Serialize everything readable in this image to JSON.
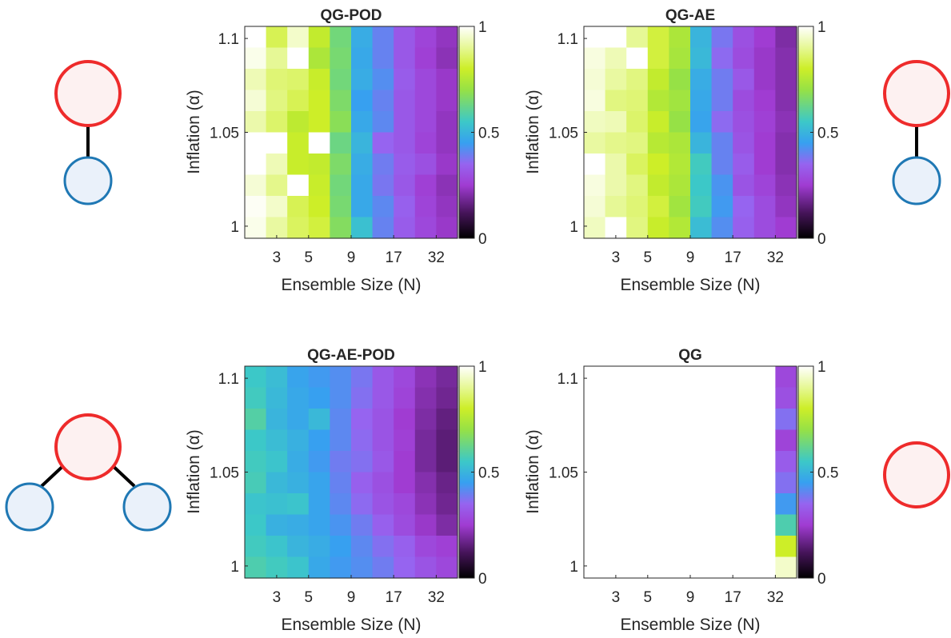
{
  "chart_data": [
    {
      "type": "heatmap",
      "title": "QG-POD",
      "xlabel": "Ensemble Size (N)",
      "ylabel": "Inflation (α)",
      "x_ticks": [
        "3",
        "5",
        "9",
        "17",
        "32"
      ],
      "y_ticks": [
        "1",
        "1.05",
        "1.1"
      ],
      "colorbar_ticks": [
        "0",
        "0.5",
        "1"
      ],
      "clim": [
        0,
        1
      ],
      "colormap": "white-green-cyan-blue-purple-black",
      "rows_from_top": [
        [
          1.0,
          0.84,
          0.95,
          0.78,
          0.64,
          0.48,
          0.4,
          0.32,
          0.27,
          0.23
        ],
        [
          0.98,
          0.9,
          1.0,
          0.74,
          0.65,
          0.47,
          0.4,
          0.32,
          0.26,
          0.22
        ],
        [
          0.93,
          0.87,
          0.86,
          0.79,
          0.64,
          0.48,
          0.42,
          0.33,
          0.28,
          0.24
        ],
        [
          0.96,
          0.88,
          0.84,
          0.8,
          0.66,
          0.45,
          0.4,
          0.32,
          0.28,
          0.24
        ],
        [
          0.92,
          0.86,
          0.77,
          0.8,
          0.68,
          0.47,
          0.41,
          0.32,
          0.28,
          0.23
        ],
        [
          1.0,
          1.0,
          0.79,
          1.0,
          0.63,
          0.5,
          0.35,
          0.32,
          0.27,
          0.23
        ],
        [
          1.0,
          0.93,
          0.79,
          0.78,
          0.66,
          0.48,
          0.39,
          0.33,
          0.3,
          0.24
        ],
        [
          0.96,
          0.89,
          1.0,
          0.79,
          0.64,
          0.47,
          0.38,
          0.32,
          0.26,
          0.22
        ],
        [
          0.99,
          0.95,
          0.84,
          0.8,
          0.65,
          0.47,
          0.41,
          0.34,
          0.27,
          0.23
        ],
        [
          0.98,
          0.91,
          0.85,
          0.82,
          0.67,
          0.53,
          0.4,
          0.33,
          0.28,
          0.24
        ]
      ],
      "diagram": "parent-one-child"
    },
    {
      "type": "heatmap",
      "title": "QG-AE",
      "xlabel": "Ensemble Size (N)",
      "ylabel": "Inflation (α)",
      "x_ticks": [
        "3",
        "5",
        "9",
        "17",
        "32"
      ],
      "y_ticks": [
        "1",
        "1.05",
        "1.1"
      ],
      "colorbar_ticks": [
        "0",
        "0.5",
        "1"
      ],
      "clim": [
        0,
        1
      ],
      "colormap": "white-green-cyan-blue-purple-black",
      "rows_from_top": [
        [
          1.0,
          1.0,
          0.9,
          0.82,
          0.74,
          0.5,
          0.38,
          0.3,
          0.25,
          0.2
        ],
        [
          0.97,
          0.93,
          1.0,
          0.82,
          0.73,
          0.51,
          0.36,
          0.29,
          0.24,
          0.21
        ],
        [
          0.96,
          0.91,
          0.88,
          0.78,
          0.7,
          0.48,
          0.39,
          0.32,
          0.24,
          0.21
        ],
        [
          0.97,
          0.88,
          0.87,
          0.75,
          0.72,
          0.47,
          0.39,
          0.29,
          0.25,
          0.21
        ],
        [
          0.94,
          0.93,
          0.86,
          0.79,
          0.7,
          0.46,
          0.36,
          0.3,
          0.26,
          0.22
        ],
        [
          0.91,
          0.89,
          0.88,
          0.76,
          0.74,
          0.5,
          0.4,
          0.31,
          0.25,
          0.21
        ],
        [
          1.0,
          0.92,
          0.85,
          0.8,
          0.75,
          0.56,
          0.4,
          0.33,
          0.25,
          0.21
        ],
        [
          0.97,
          0.92,
          0.88,
          0.78,
          0.74,
          0.55,
          0.43,
          0.31,
          0.27,
          0.22
        ],
        [
          0.96,
          0.9,
          0.87,
          0.82,
          0.72,
          0.56,
          0.44,
          0.35,
          0.29,
          0.23
        ],
        [
          0.94,
          1.0,
          0.88,
          0.79,
          0.75,
          0.52,
          0.42,
          0.34,
          0.29,
          0.25
        ]
      ],
      "diagram": "parent-one-child"
    },
    {
      "type": "heatmap",
      "title": "QG-AE-POD",
      "xlabel": "Ensemble Size (N)",
      "ylabel": "Inflation (α)",
      "x_ticks": [
        "3",
        "5",
        "9",
        "17",
        "32"
      ],
      "y_ticks": [
        "1",
        "1.05",
        "1.1"
      ],
      "colorbar_ticks": [
        "0",
        "0.5",
        "1"
      ],
      "clim": [
        0,
        1
      ],
      "colormap": "white-green-cyan-blue-purple-black",
      "rows_from_top": [
        [
          0.55,
          0.52,
          0.46,
          0.44,
          0.42,
          0.38,
          0.32,
          0.28,
          0.22,
          0.19
        ],
        [
          0.56,
          0.51,
          0.47,
          0.45,
          0.42,
          0.37,
          0.32,
          0.27,
          0.21,
          0.18
        ],
        [
          0.59,
          0.5,
          0.47,
          0.51,
          0.41,
          0.35,
          0.31,
          0.25,
          0.2,
          0.16
        ],
        [
          0.55,
          0.52,
          0.49,
          0.45,
          0.41,
          0.36,
          0.31,
          0.26,
          0.19,
          0.15
        ],
        [
          0.56,
          0.54,
          0.48,
          0.44,
          0.39,
          0.37,
          0.32,
          0.25,
          0.19,
          0.15
        ],
        [
          0.57,
          0.51,
          0.49,
          0.46,
          0.4,
          0.34,
          0.3,
          0.25,
          0.21,
          0.17
        ],
        [
          0.54,
          0.53,
          0.54,
          0.46,
          0.41,
          0.36,
          0.31,
          0.28,
          0.22,
          0.18
        ],
        [
          0.55,
          0.49,
          0.48,
          0.46,
          0.43,
          0.39,
          0.34,
          0.29,
          0.24,
          0.2
        ],
        [
          0.56,
          0.54,
          0.5,
          0.48,
          0.45,
          0.41,
          0.37,
          0.34,
          0.28,
          0.26
        ],
        [
          0.58,
          0.56,
          0.54,
          0.47,
          0.44,
          0.42,
          0.39,
          0.35,
          0.31,
          0.28
        ]
      ],
      "diagram": "parent-two-children"
    },
    {
      "type": "heatmap",
      "title": "QG",
      "xlabel": "Ensemble Size (N)",
      "ylabel": "Inflation (α)",
      "x_ticks": [
        "3",
        "5",
        "9",
        "17",
        "32"
      ],
      "y_ticks": [
        "1",
        "1.05",
        "1.1"
      ],
      "colorbar_ticks": [
        "0",
        "0.5",
        "1"
      ],
      "clim": [
        0,
        1
      ],
      "colormap": "white-green-cyan-blue-purple-black",
      "rows_from_top": [
        [
          null,
          null,
          null,
          null,
          null,
          null,
          null,
          null,
          null,
          0.28
        ],
        [
          null,
          null,
          null,
          null,
          null,
          null,
          null,
          null,
          null,
          0.3
        ],
        [
          null,
          null,
          null,
          null,
          null,
          null,
          null,
          null,
          null,
          0.37
        ],
        [
          null,
          null,
          null,
          null,
          null,
          null,
          null,
          null,
          null,
          0.27
        ],
        [
          null,
          null,
          null,
          null,
          null,
          null,
          null,
          null,
          null,
          0.33
        ],
        [
          null,
          null,
          null,
          null,
          null,
          null,
          null,
          null,
          null,
          0.37
        ],
        [
          null,
          null,
          null,
          null,
          null,
          null,
          null,
          null,
          null,
          0.44
        ],
        [
          null,
          null,
          null,
          null,
          null,
          null,
          null,
          null,
          null,
          0.58
        ],
        [
          null,
          null,
          null,
          null,
          null,
          null,
          null,
          null,
          null,
          0.8
        ],
        [
          null,
          null,
          null,
          null,
          null,
          null,
          null,
          null,
          null,
          0.95
        ]
      ],
      "diagram": "single-node"
    }
  ],
  "colors": {
    "parent_stroke": "#ee2b2b",
    "parent_fill": "#fdf1f1",
    "child_stroke": "#1f78b4",
    "child_fill": "#eaf1fa",
    "edge": "#000000",
    "axis": "#262626"
  }
}
